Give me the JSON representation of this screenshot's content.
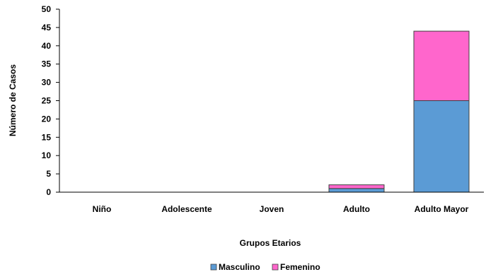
{
  "chart_data": {
    "type": "bar",
    "stacked": true,
    "categories": [
      "Niño",
      "Adolescente",
      "Joven",
      "Adulto",
      "Adulto Mayor"
    ],
    "series": [
      {
        "name": "Masculino",
        "values": [
          0,
          0,
          0,
          1,
          25
        ],
        "color": "#5B9BD5"
      },
      {
        "name": "Femenino",
        "values": [
          0,
          0,
          0,
          1,
          19
        ],
        "color": "#FF66CC"
      }
    ],
    "title": "",
    "xlabel": "Grupos Etarios",
    "ylabel": "Número de Casos",
    "ylim": [
      0,
      50
    ],
    "yticks": [
      0,
      5,
      10,
      15,
      20,
      25,
      30,
      35,
      40,
      45,
      50
    ],
    "grid": false,
    "legend_position": "bottom"
  }
}
